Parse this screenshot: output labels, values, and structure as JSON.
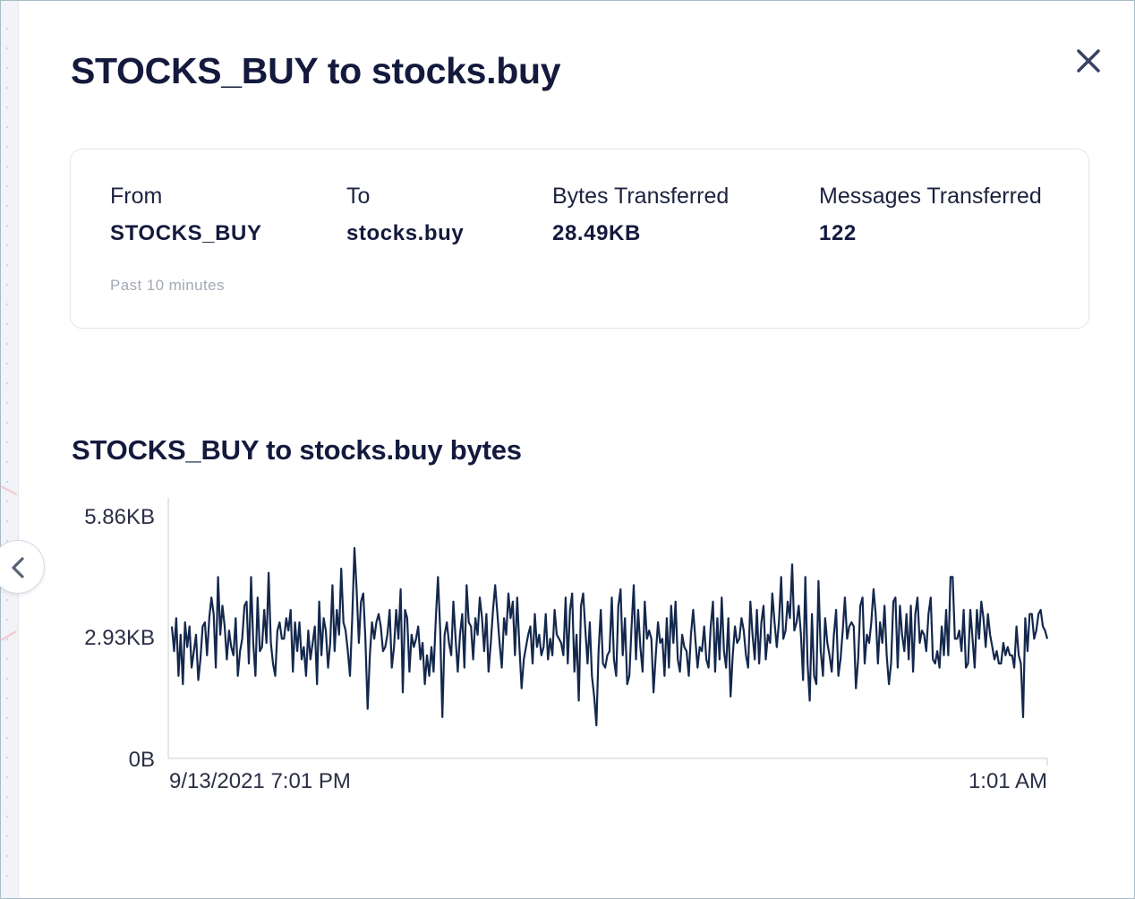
{
  "modal": {
    "title": "STOCKS_BUY to stocks.buy"
  },
  "summary": {
    "from_label": "From",
    "from_value": "STOCKS_BUY",
    "to_label": "To",
    "to_value": "stocks.buy",
    "bytes_label": "Bytes Transferred",
    "bytes_value": "28.49KB",
    "messages_label": "Messages Transferred",
    "messages_value": "122",
    "period_note": "Past 10 minutes"
  },
  "icons": {
    "close": "close-icon",
    "collapse": "chevron-left-icon"
  },
  "colors": {
    "line": "#14284d",
    "text": "#141a3d",
    "muted": "#a4a9b6",
    "accent_pink": "#f4c6d2"
  },
  "chart_data": {
    "type": "line",
    "title": "STOCKS_BUY to stocks.buy bytes",
    "y_unit": "KB",
    "yticks": [
      "5.86KB",
      "2.93KB",
      "0B"
    ],
    "ylim": [
      0,
      5.86
    ],
    "xticks": [
      "9/13/2021 7:01 PM",
      "1:01 AM"
    ],
    "grid": false,
    "series": [
      {
        "values": [
          3.2,
          2.6,
          3.4,
          2.0,
          3.0,
          1.8,
          3.3,
          2.7,
          3.2,
          2.2,
          2.6,
          3.0,
          1.9,
          2.4,
          3.2,
          3.3,
          2.5,
          3.4,
          3.9,
          3.5,
          2.2,
          4.4,
          3.0,
          3.7,
          3.2,
          2.4,
          3.1,
          2.7,
          2.5,
          3.4,
          2.0,
          2.6,
          2.9,
          3.7,
          3.8,
          2.3,
          4.4,
          2.8,
          2.0,
          3.9,
          2.6,
          2.7,
          3.6,
          2.8,
          4.5,
          2.8,
          2.3,
          2.0,
          3.1,
          3.3,
          2.9,
          2.9,
          3.4,
          3.1,
          3.6,
          2.1,
          3.3,
          2.6,
          3.3,
          2.4,
          2.7,
          2.0,
          3.1,
          2.4,
          2.8,
          3.2,
          1.8,
          3.8,
          2.5,
          3.4,
          3.1,
          2.2,
          2.8,
          4.2,
          2.6,
          3.6,
          3.0,
          4.6,
          3.3,
          3.1,
          2.6,
          2.0,
          3.4,
          5.1,
          4.1,
          2.8,
          3.8,
          4.0,
          2.9,
          1.2,
          2.5,
          3.3,
          2.9,
          3.3,
          3.5,
          3.2,
          2.6,
          2.7,
          3.0,
          3.6,
          2.2,
          2.7,
          3.6,
          2.9,
          4.1,
          1.6,
          3.6,
          3.4,
          2.1,
          3.0,
          2.7,
          2.9,
          3.2,
          2.4,
          2.8,
          1.8,
          2.5,
          2.0,
          2.7,
          2.1,
          3.4,
          4.4,
          3.1,
          1.0,
          3.0,
          3.3,
          2.8,
          2.5,
          3.8,
          2.9,
          2.1,
          3.0,
          3.5,
          2.2,
          4.2,
          3.3,
          3.2,
          2.4,
          3.4,
          3.0,
          3.9,
          3.4,
          2.6,
          3.5,
          2.1,
          2.8,
          3.6,
          4.2,
          3.5,
          2.8,
          2.2,
          3.4,
          3.0,
          4.0,
          3.4,
          3.8,
          2.5,
          3.9,
          2.7,
          1.7,
          2.4,
          2.7,
          3.0,
          3.2,
          2.3,
          3.5,
          2.7,
          3.0,
          2.5,
          2.7,
          3.5,
          2.4,
          2.9,
          2.5,
          3.6,
          3.0,
          2.9,
          2.8,
          2.5,
          3.9,
          2.3,
          3.6,
          4.0,
          2.1,
          3.0,
          1.4,
          3.7,
          4.0,
          3.1,
          2.3,
          3.3,
          2.0,
          1.5,
          0.8,
          2.6,
          3.6,
          2.3,
          2.2,
          2.5,
          2.6,
          3.9,
          2.4,
          2.0,
          3.7,
          4.1,
          2.5,
          3.4,
          1.8,
          2.0,
          3.2,
          4.2,
          2.4,
          3.6,
          2.7,
          2.1,
          3.8,
          2.9,
          3.1,
          2.9,
          1.6,
          2.5,
          3.3,
          2.8,
          2.9,
          2.0,
          3.4,
          2.2,
          3.7,
          2.8,
          3.8,
          2.4,
          2.1,
          3.0,
          2.7,
          2.6,
          2.0,
          3.0,
          3.6,
          2.9,
          2.2,
          2.7,
          2.6,
          3.2,
          2.4,
          2.2,
          3.2,
          3.8,
          2.1,
          3.4,
          2.4,
          3.9,
          2.6,
          2.2,
          3.4,
          1.5,
          2.5,
          3.2,
          2.8,
          2.9,
          3.4,
          3.1,
          2.5,
          2.2,
          3.8,
          3.0,
          2.4,
          3.6,
          2.3,
          3.3,
          3.7,
          2.4,
          3.0,
          2.8,
          4.0,
          3.3,
          2.7,
          3.3,
          4.4,
          2.9,
          3.1,
          3.8,
          3.4,
          4.7,
          3.1,
          3.3,
          3.7,
          3.0,
          1.9,
          4.4,
          2.3,
          1.4,
          3.5,
          2.0,
          1.8,
          4.3,
          2.6,
          2.0,
          3.4,
          2.8,
          2.5,
          2.1,
          3.0,
          3.6,
          2.0,
          2.4,
          3.1,
          3.9,
          2.9,
          3.2,
          3.3,
          3.2,
          1.7,
          2.4,
          3.7,
          3.9,
          2.3,
          3.0,
          2.8,
          3.3,
          4.1,
          3.5,
          2.3,
          3.3,
          2.8,
          3.7,
          2.5,
          1.8,
          2.3,
          3.8,
          3.9,
          2.2,
          3.7,
          3.0,
          2.6,
          3.5,
          2.4,
          3.7,
          2.1,
          3.5,
          3.9,
          2.8,
          3.1,
          3.0,
          2.6,
          3.5,
          3.9,
          2.4,
          2.3,
          2.6,
          2.2,
          3.2,
          2.5,
          3.6,
          2.5,
          4.4,
          4.4,
          2.9,
          2.9,
          3.1,
          2.6,
          3.6,
          2.2,
          2.3,
          3.6,
          2.9,
          2.2,
          3.6,
          2.9,
          3.8,
          3.4,
          2.7,
          3.5,
          3.0,
          2.7,
          2.4,
          2.6,
          2.3,
          2.3,
          2.8,
          2.5,
          2.7,
          2.5,
          2.5,
          2.2,
          3.2,
          2.5,
          2.3,
          1.0,
          3.4,
          2.6,
          3.5,
          3.5,
          2.9,
          3.1,
          3.5,
          3.6,
          3.2,
          3.1,
          2.9
        ]
      }
    ]
  }
}
